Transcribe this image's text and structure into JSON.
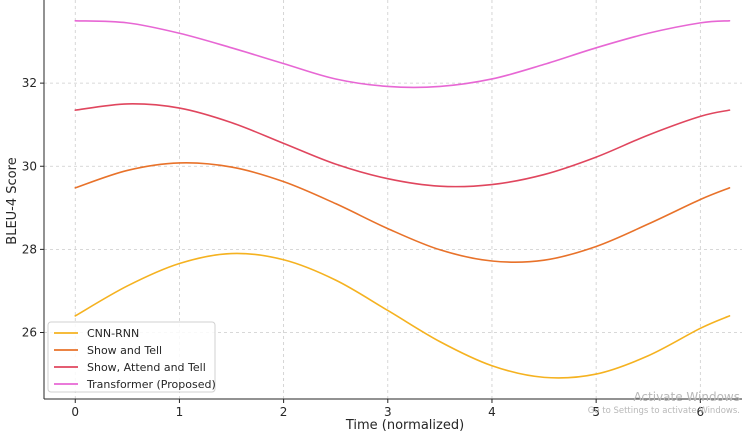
{
  "chart_data": {
    "type": "line",
    "xlabel": "Time (normalized)",
    "ylabel": "BLEU-4 Score",
    "xlim": [
      -0.3,
      6.4
    ],
    "ylim": [
      24.4,
      34.0
    ],
    "xticks": [
      0,
      1,
      2,
      3,
      4,
      5,
      6
    ],
    "yticks": [
      26,
      28,
      30,
      32
    ],
    "grid": true,
    "legend_position": "bottom-left",
    "series": [
      {
        "name": "CNN-RNN",
        "color": "#f5b220",
        "x": [
          0,
          0.5,
          1,
          1.5,
          2,
          2.5,
          3,
          3.5,
          4,
          4.5,
          5,
          5.5,
          6,
          6.28
        ],
        "y": [
          26.4,
          27.12,
          27.66,
          27.9,
          27.75,
          27.26,
          26.53,
          25.78,
          25.2,
          24.92,
          25.0,
          25.44,
          26.1,
          26.4
        ]
      },
      {
        "name": "Show and Tell",
        "color": "#e8722a",
        "x": [
          0,
          0.5,
          1,
          1.5,
          2,
          2.5,
          3,
          3.5,
          4,
          4.5,
          5,
          5.5,
          6,
          6.28
        ],
        "y": [
          29.48,
          29.9,
          30.08,
          29.98,
          29.63,
          29.1,
          28.5,
          27.99,
          27.72,
          27.74,
          28.07,
          28.61,
          29.2,
          29.48
        ]
      },
      {
        "name": "Show, Attend and Tell",
        "color": "#e0465e",
        "x": [
          0,
          0.5,
          1,
          1.5,
          2,
          2.5,
          3,
          3.5,
          4,
          4.5,
          5,
          5.5,
          6,
          6.28
        ],
        "y": [
          31.35,
          31.5,
          31.4,
          31.05,
          30.55,
          30.05,
          29.7,
          29.52,
          29.56,
          29.8,
          30.22,
          30.75,
          31.2,
          31.35
        ]
      },
      {
        "name": "Transformer (Proposed)",
        "color": "#e767d4",
        "x": [
          0,
          0.5,
          1,
          1.5,
          2,
          2.5,
          3,
          3.5,
          4,
          4.5,
          5,
          5.5,
          6,
          6.28
        ],
        "y": [
          33.5,
          33.45,
          33.2,
          32.85,
          32.47,
          32.1,
          31.92,
          31.92,
          32.1,
          32.45,
          32.85,
          33.2,
          33.45,
          33.5
        ]
      }
    ]
  },
  "watermark": {
    "title": "Activate Windows",
    "subtitle": "Go to Settings to activate Windows."
  }
}
